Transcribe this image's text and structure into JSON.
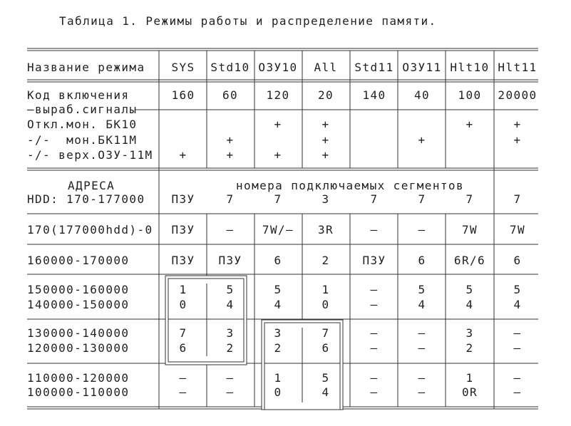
{
  "title": "Таблица 1. Режимы работы и распределение памяти.",
  "header": {
    "label": "Название режима",
    "columns": [
      "SYS",
      "Std10",
      "ОЗУ10",
      "All",
      "Std11",
      "ОЗУ11",
      "Hlt10",
      "Hlt11"
    ]
  },
  "code_row": {
    "label": "Код включения",
    "values": [
      "160",
      "60",
      "120",
      "20",
      "140",
      "40",
      "100",
      "20000"
    ]
  },
  "signals": {
    "label": "—выраб.сигналы",
    "rows": [
      {
        "label": "Откл.мон. БК10",
        "marks": [
          "",
          "",
          "+",
          "+",
          "",
          "",
          "+",
          "+"
        ]
      },
      {
        "label": "-/-  мон.БК11М",
        "marks": [
          "",
          "+",
          "",
          "+",
          "",
          "+",
          "",
          "+"
        ]
      },
      {
        "label": "-/- верх.ОЗУ-11М",
        "marks": [
          "+",
          "+",
          "+",
          "+",
          "",
          "",
          "",
          ""
        ]
      }
    ]
  },
  "address": {
    "label": "АДРЕСА",
    "hdd_label": "HDD: 170-177000",
    "segments_caption": "номера подключаемых сегментов",
    "values": [
      "ПЗУ",
      "7",
      "7",
      "3",
      "7",
      "7",
      "7",
      "7"
    ]
  },
  "memory_rows": [
    {
      "label": "170(177000hdd)-0",
      "values": [
        "ПЗУ",
        "–",
        "7W/–",
        "3R",
        "–",
        "–",
        "7W",
        "7W"
      ]
    },
    {
      "label": "160000-170000",
      "values": [
        "ПЗУ",
        "ПЗУ",
        "6",
        "2",
        "ПЗУ",
        "6",
        "6R/6",
        "6"
      ]
    },
    {
      "label": "150000-160000",
      "values": [
        "1",
        "5",
        "5",
        "1",
        "–",
        "5",
        "5",
        "5"
      ]
    },
    {
      "label": "140000-150000",
      "values": [
        "0",
        "4",
        "4",
        "0",
        "–",
        "4",
        "4",
        "4"
      ]
    },
    {
      "label": "130000-140000",
      "values": [
        "7",
        "3",
        "3",
        "7",
        "–",
        "–",
        "3",
        "–"
      ]
    },
    {
      "label": "120000-130000",
      "values": [
        "6",
        "2",
        "2",
        "6",
        "–",
        "–",
        "2",
        "–"
      ]
    },
    {
      "label": "110000-120000",
      "values": [
        "–",
        "–",
        "1",
        "5",
        "–",
        "–",
        "1",
        "–"
      ]
    },
    {
      "label": "100000-110000",
      "values": [
        "–",
        "–",
        "0",
        "4",
        "–",
        "–",
        "0R",
        "–"
      ]
    }
  ]
}
